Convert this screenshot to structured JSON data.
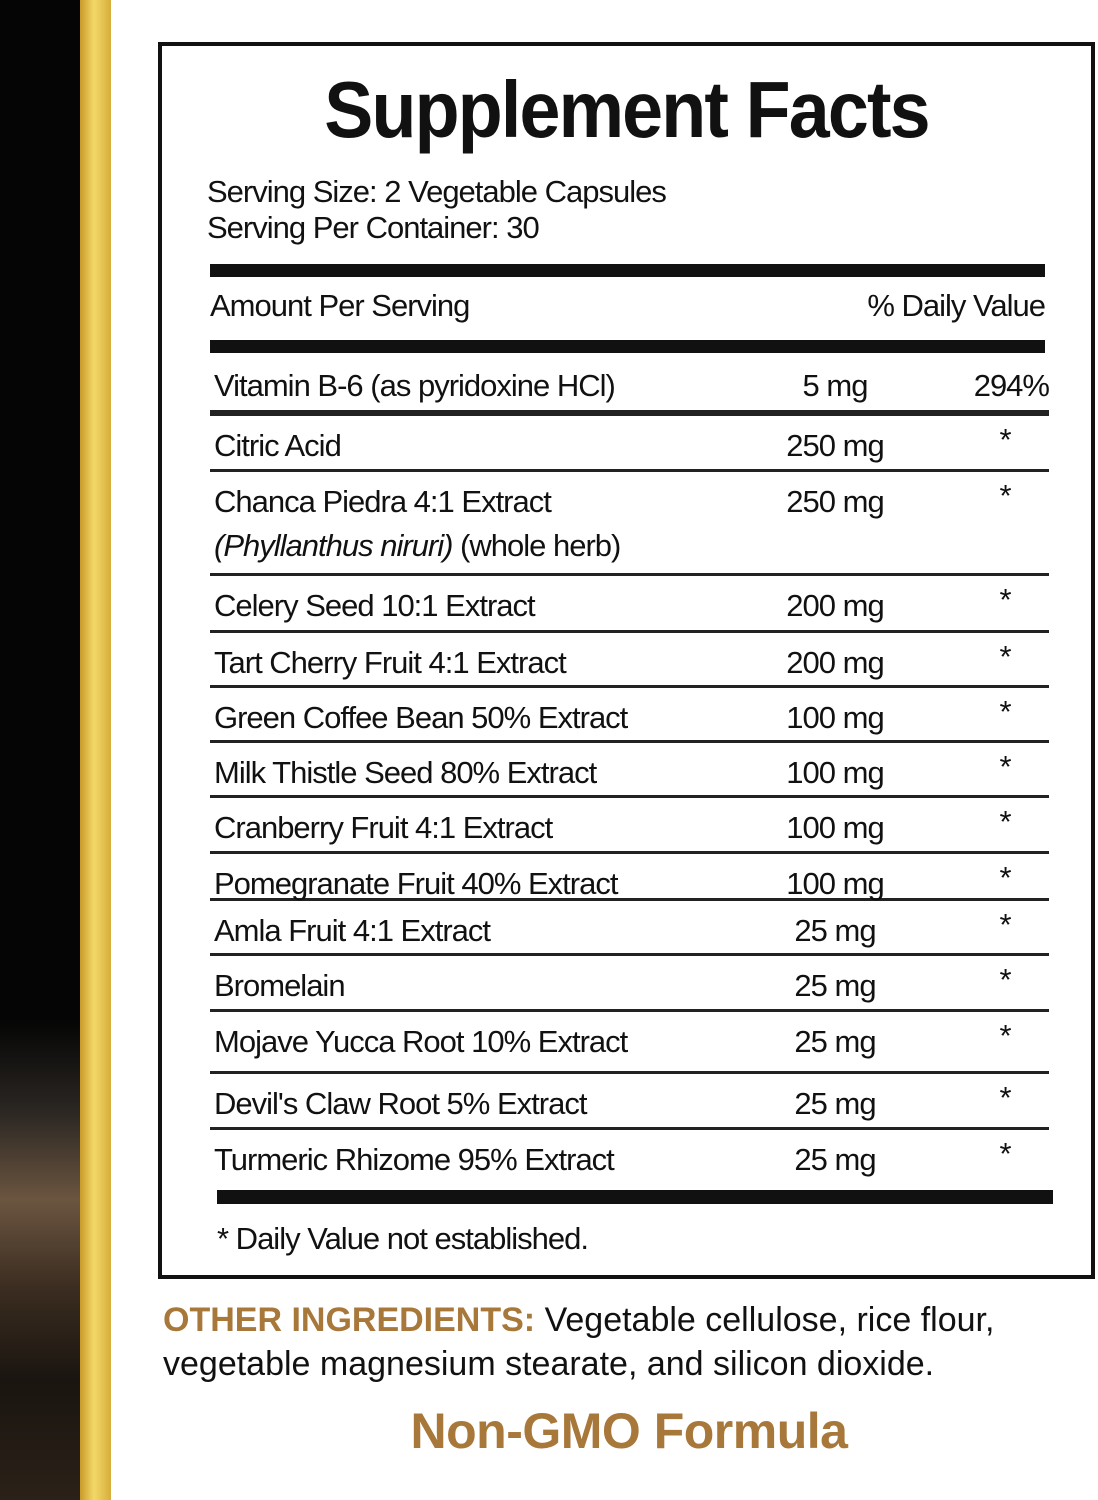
{
  "title": "Supplement Facts",
  "serving_size": "Serving Size: 2 Vegetable Capsules",
  "servings_per_container": "Serving Per Container: 30",
  "amount_per_serving": "Amount Per Serving",
  "daily_value_header": "% Daily Value",
  "ingredients": [
    {
      "name": "Vitamin B-6 (as pyridoxine HCl)",
      "amount": "5 mg",
      "dv": "294%"
    },
    {
      "name": "Citric Acid",
      "amount": "250 mg",
      "dv": "*"
    },
    {
      "name": "Chanca Piedra 4:1 Extract",
      "sub_italic": "(Phyllanthus niruri)",
      "sub": " (whole herb)",
      "amount": "250 mg",
      "dv": "*"
    },
    {
      "name": "Celery Seed 10:1 Extract",
      "amount": "200 mg",
      "dv": "*"
    },
    {
      "name": "Tart Cherry Fruit 4:1 Extract",
      "amount": "200 mg",
      "dv": "*"
    },
    {
      "name": "Green Coffee Bean 50% Extract",
      "amount": "100 mg",
      "dv": "*"
    },
    {
      "name": "Milk Thistle Seed 80% Extract",
      "amount": "100 mg",
      "dv": "*"
    },
    {
      "name": "Cranberry Fruit 4:1 Extract",
      "amount": "100 mg",
      "dv": "*"
    },
    {
      "name": "Pomegranate Fruit 40% Extract",
      "amount": "100 mg",
      "dv": "*"
    },
    {
      "name": "Amla Fruit 4:1 Extract",
      "amount": "25 mg",
      "dv": "*"
    },
    {
      "name": "Bromelain",
      "amount": "25 mg",
      "dv": "*"
    },
    {
      "name": "Mojave Yucca Root 10% Extract",
      "amount": "25 mg",
      "dv": "*"
    },
    {
      "name": "Devil's Claw Root 5% Extract",
      "amount": "25 mg",
      "dv": "*"
    },
    {
      "name": "Turmeric Rhizome 95% Extract",
      "amount": "25 mg",
      "dv": "*"
    }
  ],
  "footnote": "* Daily Value not established.",
  "other_ingredients_label": "OTHER INGREDIENTS:",
  "other_ingredients": " Vegetable cellulose, rice flour, vegetable magnesium stearate, and silicon dioxide.",
  "non_gmo": "Non-GMO Formula",
  "colors": {
    "accent_gold": "#a8783a",
    "strip_gold": "#f2d868",
    "strip_dark": "#050505"
  }
}
